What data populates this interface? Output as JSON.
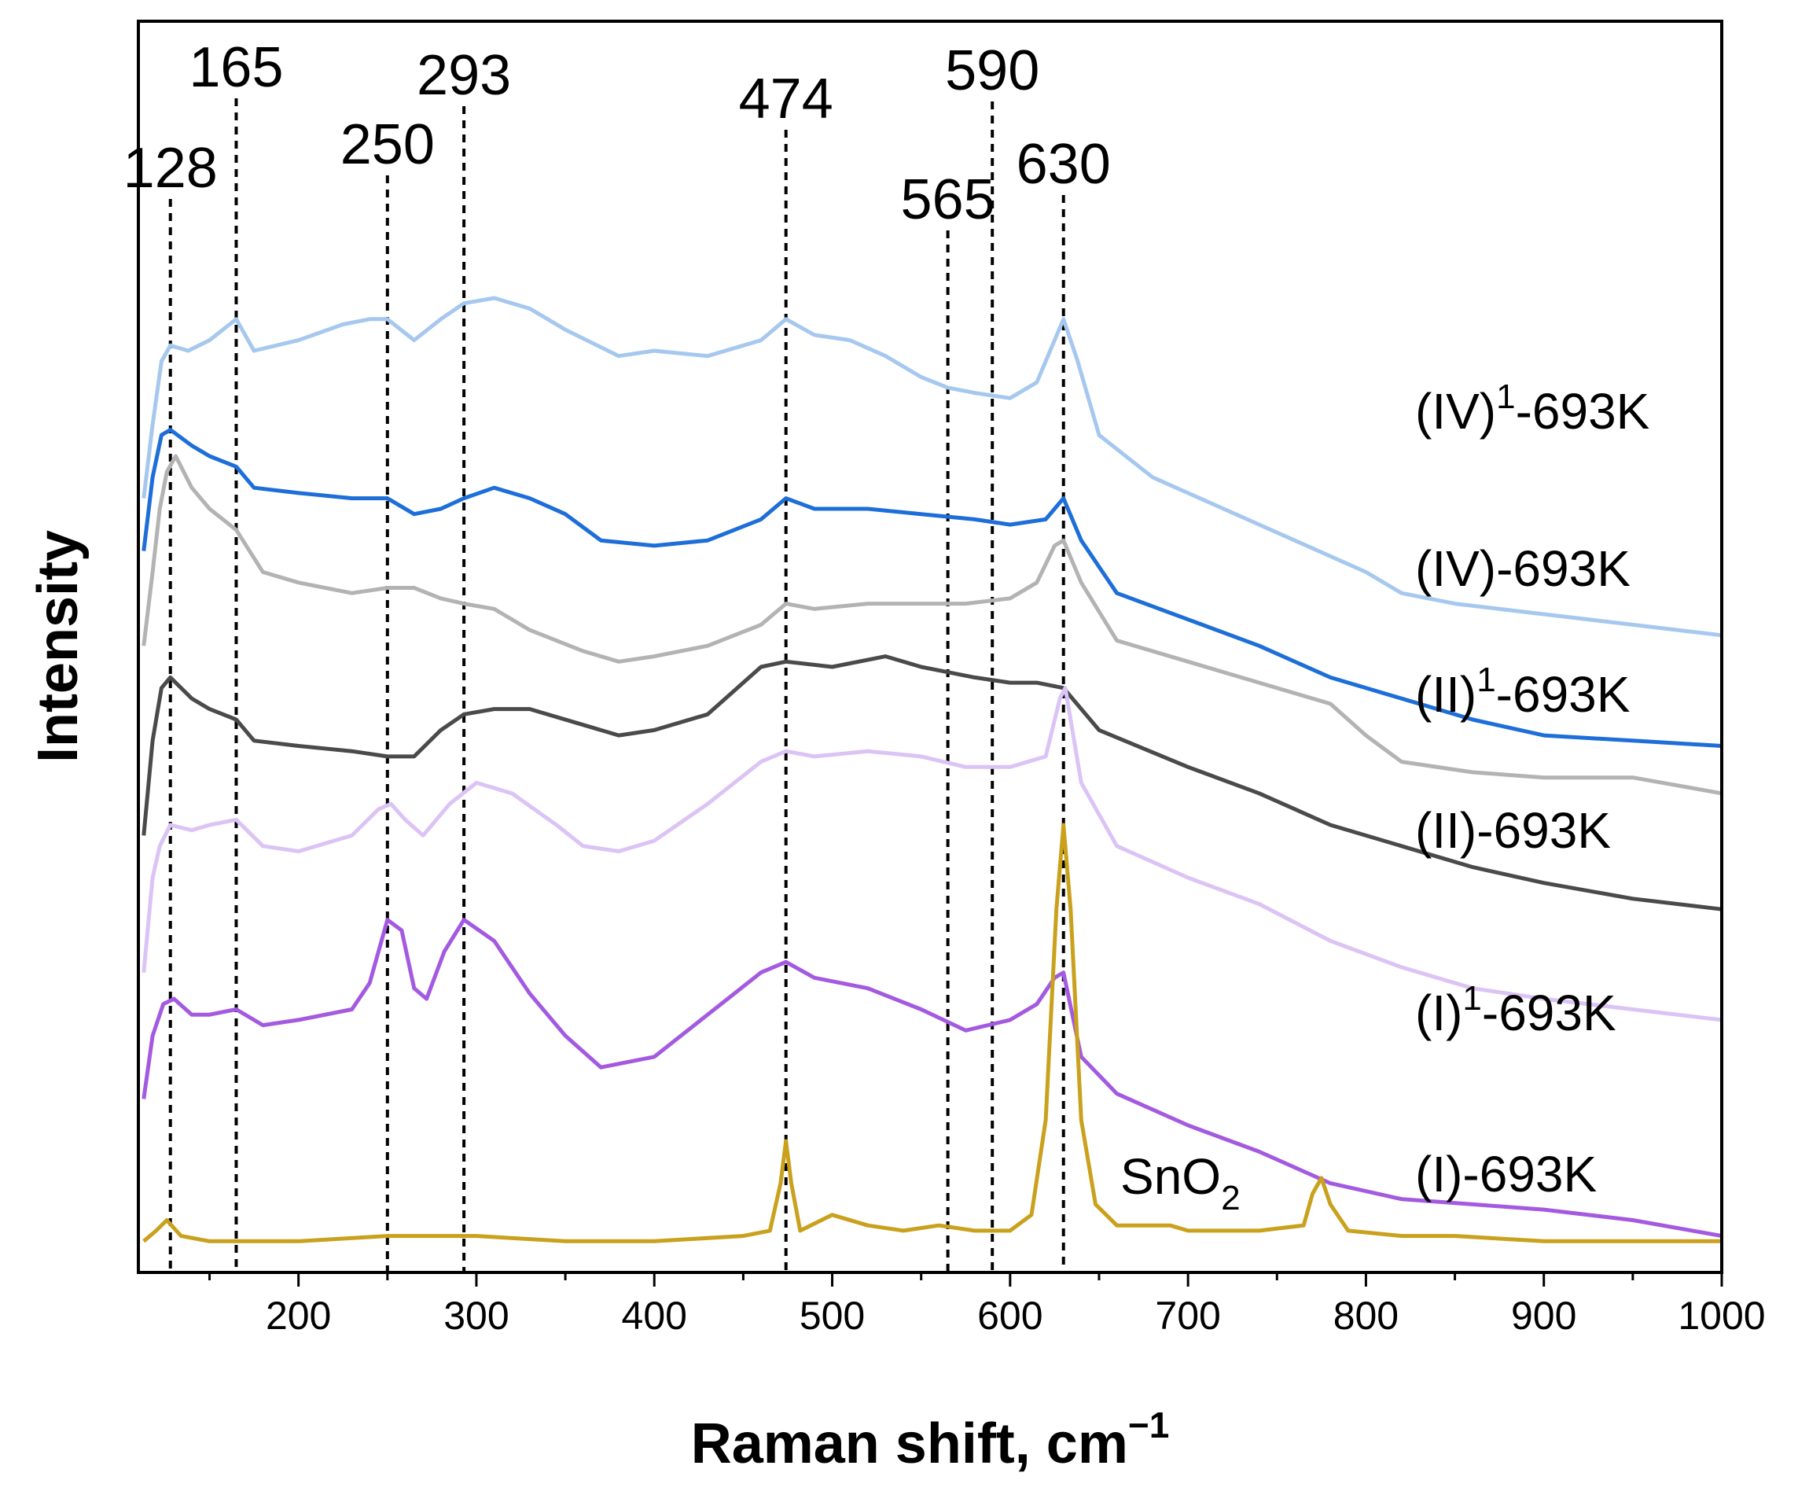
{
  "chart_data": {
    "type": "line",
    "xlabel": "Raman shift, cm",
    "xlabel_sup": "−1",
    "ylabel": "Intensity",
    "xlim": [
      110,
      1000
    ],
    "ylim": [
      0,
      100
    ],
    "grid": false,
    "y_ticks_shown": false,
    "x_ticks": [
      200,
      300,
      400,
      500,
      600,
      700,
      800,
      900,
      1000
    ],
    "peak_lines": [
      128,
      165,
      250,
      293,
      474,
      565,
      590,
      630
    ],
    "peak_labels": [
      {
        "text": "128",
        "x": 128
      },
      {
        "text": "165",
        "x": 165
      },
      {
        "text": "250",
        "x": 250
      },
      {
        "text": "293",
        "x": 293
      },
      {
        "text": "474",
        "x": 474
      },
      {
        "text": "565",
        "x": 565
      },
      {
        "text": "590",
        "x": 590
      },
      {
        "text": "630",
        "x": 630
      }
    ],
    "annotations": [
      {
        "text": "SnO",
        "sub": "2",
        "x": 705
      }
    ],
    "series": [
      {
        "name": "(IV)¹-693K",
        "label_main": "(IV)",
        "label_sup": "1",
        "label_tail": "-693K",
        "color": "#a6c8ee",
        "points": [
          [
            113,
            71
          ],
          [
            118,
            78
          ],
          [
            123,
            84
          ],
          [
            128,
            85.5
          ],
          [
            138,
            85
          ],
          [
            150,
            86
          ],
          [
            165,
            88
          ],
          [
            175,
            85
          ],
          [
            200,
            86
          ],
          [
            225,
            87.5
          ],
          [
            240,
            88
          ],
          [
            250,
            88
          ],
          [
            265,
            86
          ],
          [
            280,
            88
          ],
          [
            293,
            89.5
          ],
          [
            310,
            90
          ],
          [
            330,
            89
          ],
          [
            350,
            87
          ],
          [
            380,
            84.5
          ],
          [
            400,
            85
          ],
          [
            430,
            84.5
          ],
          [
            460,
            86
          ],
          [
            474,
            88
          ],
          [
            490,
            86.5
          ],
          [
            510,
            86
          ],
          [
            530,
            84.5
          ],
          [
            550,
            82.5
          ],
          [
            565,
            81.5
          ],
          [
            580,
            81
          ],
          [
            600,
            80.5
          ],
          [
            615,
            82
          ],
          [
            625,
            86
          ],
          [
            630,
            88
          ],
          [
            638,
            84
          ],
          [
            650,
            77
          ],
          [
            680,
            73
          ],
          [
            720,
            70
          ],
          [
            760,
            67
          ],
          [
            800,
            64
          ],
          [
            820,
            62
          ],
          [
            850,
            61
          ],
          [
            900,
            60
          ],
          [
            950,
            59
          ],
          [
            1000,
            58
          ]
        ]
      },
      {
        "name": "(IV)-693K",
        "label_main": "(IV)",
        "label_sup": "",
        "label_tail": "-693K",
        "color": "#1d6ed8",
        "points": [
          [
            113,
            66
          ],
          [
            118,
            73
          ],
          [
            123,
            77
          ],
          [
            128,
            77.5
          ],
          [
            140,
            76
          ],
          [
            150,
            75
          ],
          [
            165,
            74
          ],
          [
            175,
            72
          ],
          [
            200,
            71.5
          ],
          [
            230,
            71
          ],
          [
            250,
            71
          ],
          [
            265,
            69.5
          ],
          [
            280,
            70
          ],
          [
            293,
            71
          ],
          [
            310,
            72
          ],
          [
            330,
            71
          ],
          [
            350,
            69.5
          ],
          [
            370,
            67
          ],
          [
            400,
            66.5
          ],
          [
            430,
            67
          ],
          [
            460,
            69
          ],
          [
            474,
            71
          ],
          [
            490,
            70
          ],
          [
            520,
            70
          ],
          [
            550,
            69.5
          ],
          [
            580,
            69
          ],
          [
            600,
            68.5
          ],
          [
            620,
            69
          ],
          [
            630,
            71
          ],
          [
            640,
            67
          ],
          [
            660,
            62
          ],
          [
            700,
            59.5
          ],
          [
            740,
            57
          ],
          [
            780,
            54
          ],
          [
            820,
            52
          ],
          [
            860,
            50
          ],
          [
            900,
            48.5
          ],
          [
            950,
            48
          ],
          [
            1000,
            47.5
          ]
        ]
      },
      {
        "name": "(II)¹-693K",
        "label_main": "(II)",
        "label_sup": "1",
        "label_tail": "-693K",
        "color": "#b3b3b3",
        "points": [
          [
            113,
            57
          ],
          [
            118,
            64
          ],
          [
            122,
            70
          ],
          [
            126,
            73.5
          ],
          [
            131,
            75
          ],
          [
            140,
            72
          ],
          [
            150,
            70
          ],
          [
            165,
            68
          ],
          [
            180,
            64
          ],
          [
            200,
            63
          ],
          [
            230,
            62
          ],
          [
            250,
            62.5
          ],
          [
            265,
            62.5
          ],
          [
            280,
            61.5
          ],
          [
            293,
            61
          ],
          [
            310,
            60.5
          ],
          [
            330,
            58.5
          ],
          [
            360,
            56.5
          ],
          [
            380,
            55.5
          ],
          [
            400,
            56
          ],
          [
            430,
            57
          ],
          [
            460,
            59
          ],
          [
            474,
            61
          ],
          [
            490,
            60.5
          ],
          [
            520,
            61
          ],
          [
            550,
            61
          ],
          [
            575,
            61
          ],
          [
            600,
            61.5
          ],
          [
            615,
            63
          ],
          [
            625,
            66.5
          ],
          [
            630,
            67
          ],
          [
            640,
            63
          ],
          [
            660,
            57.5
          ],
          [
            700,
            55.5
          ],
          [
            740,
            53.5
          ],
          [
            780,
            51.5
          ],
          [
            800,
            48.5
          ],
          [
            820,
            46
          ],
          [
            860,
            45
          ],
          [
            900,
            44.5
          ],
          [
            950,
            44.5
          ],
          [
            1000,
            43
          ]
        ]
      },
      {
        "name": "(II)-693K",
        "label_main": "(II)",
        "label_sup": "",
        "label_tail": "-693K",
        "color": "#4a4a4a",
        "points": [
          [
            113,
            39
          ],
          [
            118,
            48
          ],
          [
            123,
            53
          ],
          [
            128,
            54
          ],
          [
            140,
            52
          ],
          [
            150,
            51
          ],
          [
            165,
            50
          ],
          [
            175,
            48
          ],
          [
            200,
            47.5
          ],
          [
            230,
            47
          ],
          [
            250,
            46.5
          ],
          [
            265,
            46.5
          ],
          [
            280,
            49
          ],
          [
            293,
            50.5
          ],
          [
            310,
            51
          ],
          [
            330,
            51
          ],
          [
            360,
            49.5
          ],
          [
            380,
            48.5
          ],
          [
            400,
            49
          ],
          [
            430,
            50.5
          ],
          [
            460,
            55
          ],
          [
            474,
            55.5
          ],
          [
            500,
            55
          ],
          [
            530,
            56
          ],
          [
            550,
            55
          ],
          [
            565,
            54.5
          ],
          [
            580,
            54
          ],
          [
            600,
            53.5
          ],
          [
            615,
            53.5
          ],
          [
            630,
            53
          ],
          [
            650,
            49
          ],
          [
            700,
            45.5
          ],
          [
            740,
            43
          ],
          [
            780,
            40
          ],
          [
            820,
            38
          ],
          [
            860,
            36
          ],
          [
            900,
            34.5
          ],
          [
            950,
            33
          ],
          [
            1000,
            32
          ]
        ]
      },
      {
        "name": "(I)¹-693K",
        "label_main": "(I)",
        "label_sup": "1",
        "label_tail": "-693K",
        "color": "#dcc3f5",
        "points": [
          [
            113,
            26
          ],
          [
            118,
            35
          ],
          [
            122,
            38
          ],
          [
            128,
            40
          ],
          [
            140,
            39.5
          ],
          [
            150,
            40
          ],
          [
            165,
            40.5
          ],
          [
            180,
            38
          ],
          [
            200,
            37.5
          ],
          [
            230,
            39
          ],
          [
            245,
            41.5
          ],
          [
            252,
            42
          ],
          [
            260,
            40.5
          ],
          [
            270,
            39
          ],
          [
            285,
            42
          ],
          [
            300,
            44
          ],
          [
            320,
            43
          ],
          [
            345,
            40
          ],
          [
            360,
            38
          ],
          [
            380,
            37.5
          ],
          [
            400,
            38.5
          ],
          [
            430,
            42
          ],
          [
            460,
            46
          ],
          [
            474,
            47
          ],
          [
            490,
            46.5
          ],
          [
            520,
            47
          ],
          [
            550,
            46.5
          ],
          [
            575,
            45.5
          ],
          [
            600,
            45.5
          ],
          [
            620,
            46.5
          ],
          [
            628,
            52
          ],
          [
            631,
            53
          ],
          [
            640,
            44
          ],
          [
            660,
            38
          ],
          [
            700,
            35
          ],
          [
            740,
            32.5
          ],
          [
            780,
            29
          ],
          [
            820,
            26.5
          ],
          [
            860,
            24.5
          ],
          [
            900,
            23.5
          ],
          [
            950,
            22.5
          ],
          [
            1000,
            21.5
          ]
        ]
      },
      {
        "name": "(I)-693K",
        "label_main": "(I)",
        "label_sup": "",
        "label_tail": "-693K",
        "color": "#a35ae0",
        "points": [
          [
            113,
            14
          ],
          [
            118,
            20
          ],
          [
            124,
            23
          ],
          [
            130,
            23.5
          ],
          [
            140,
            22
          ],
          [
            150,
            22
          ],
          [
            165,
            22.5
          ],
          [
            180,
            21
          ],
          [
            200,
            21.5
          ],
          [
            230,
            22.5
          ],
          [
            240,
            25
          ],
          [
            250,
            31
          ],
          [
            258,
            30
          ],
          [
            265,
            24.5
          ],
          [
            272,
            23.5
          ],
          [
            282,
            28
          ],
          [
            293,
            31
          ],
          [
            310,
            29
          ],
          [
            330,
            24
          ],
          [
            350,
            20
          ],
          [
            370,
            17
          ],
          [
            400,
            18
          ],
          [
            430,
            22
          ],
          [
            460,
            26
          ],
          [
            474,
            27
          ],
          [
            490,
            25.5
          ],
          [
            520,
            24.5
          ],
          [
            550,
            22.5
          ],
          [
            575,
            20.5
          ],
          [
            600,
            21.5
          ],
          [
            615,
            23
          ],
          [
            625,
            25.5
          ],
          [
            630,
            26
          ],
          [
            640,
            18
          ],
          [
            660,
            14.5
          ],
          [
            700,
            11.5
          ],
          [
            740,
            9
          ],
          [
            780,
            6
          ],
          [
            820,
            4.5
          ],
          [
            860,
            4
          ],
          [
            900,
            3.5
          ],
          [
            950,
            2.5
          ],
          [
            1000,
            1
          ]
        ]
      },
      {
        "name": "SnO2",
        "label_main": "",
        "label_sup": "",
        "label_tail": "",
        "color": "#c9a11c",
        "points": [
          [
            113,
            0.5
          ],
          [
            120,
            1.5
          ],
          [
            126,
            2.5
          ],
          [
            134,
            1
          ],
          [
            150,
            0.5
          ],
          [
            200,
            0.5
          ],
          [
            250,
            1
          ],
          [
            300,
            1
          ],
          [
            350,
            0.5
          ],
          [
            400,
            0.5
          ],
          [
            450,
            1
          ],
          [
            465,
            1.5
          ],
          [
            471,
            6
          ],
          [
            474,
            10
          ],
          [
            477,
            6
          ],
          [
            482,
            1.5
          ],
          [
            500,
            3
          ],
          [
            520,
            2
          ],
          [
            540,
            1.5
          ],
          [
            560,
            2
          ],
          [
            580,
            1.5
          ],
          [
            600,
            1.5
          ],
          [
            612,
            3
          ],
          [
            620,
            12
          ],
          [
            626,
            32
          ],
          [
            630,
            40
          ],
          [
            634,
            32
          ],
          [
            640,
            12
          ],
          [
            648,
            4
          ],
          [
            660,
            2
          ],
          [
            690,
            2
          ],
          [
            700,
            1.5
          ],
          [
            740,
            1.5
          ],
          [
            765,
            2
          ],
          [
            770,
            5
          ],
          [
            775,
            6.5
          ],
          [
            780,
            4
          ],
          [
            790,
            1.5
          ],
          [
            820,
            1
          ],
          [
            850,
            1
          ],
          [
            900,
            0.5
          ],
          [
            950,
            0.5
          ],
          [
            1000,
            0.5
          ]
        ]
      }
    ]
  }
}
